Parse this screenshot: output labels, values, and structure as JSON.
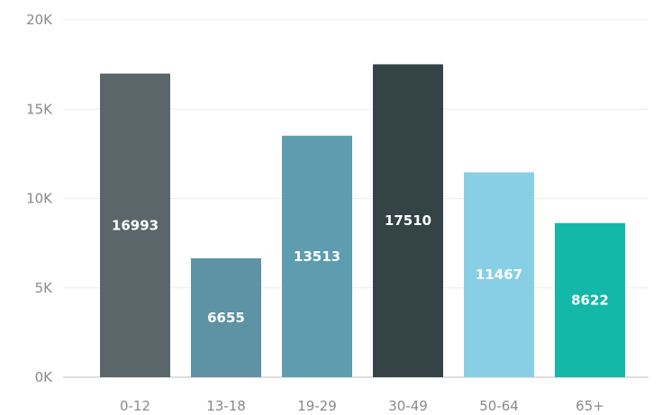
{
  "chart_data": {
    "type": "bar",
    "categories": [
      "0-12",
      "13-18",
      "19-29",
      "30-49",
      "50-64",
      "65+"
    ],
    "values": [
      16993,
      6655,
      13513,
      17510,
      11467,
      8622
    ],
    "data_labels": [
      "16993",
      "6655",
      "13513",
      "17510",
      "11467",
      "8622"
    ],
    "colors": [
      "#5a6669",
      "#5e93a5",
      "#5e9cb0",
      "#344346",
      "#88cfe6",
      "#13b8a8"
    ],
    "ylim": [
      0,
      20000
    ],
    "yticks": [
      0,
      5000,
      10000,
      15000,
      20000
    ],
    "ytick_labels": [
      "0K",
      "5K",
      "10K",
      "15K",
      "20K"
    ],
    "grid": true,
    "title": "",
    "xlabel": "",
    "ylabel": ""
  }
}
